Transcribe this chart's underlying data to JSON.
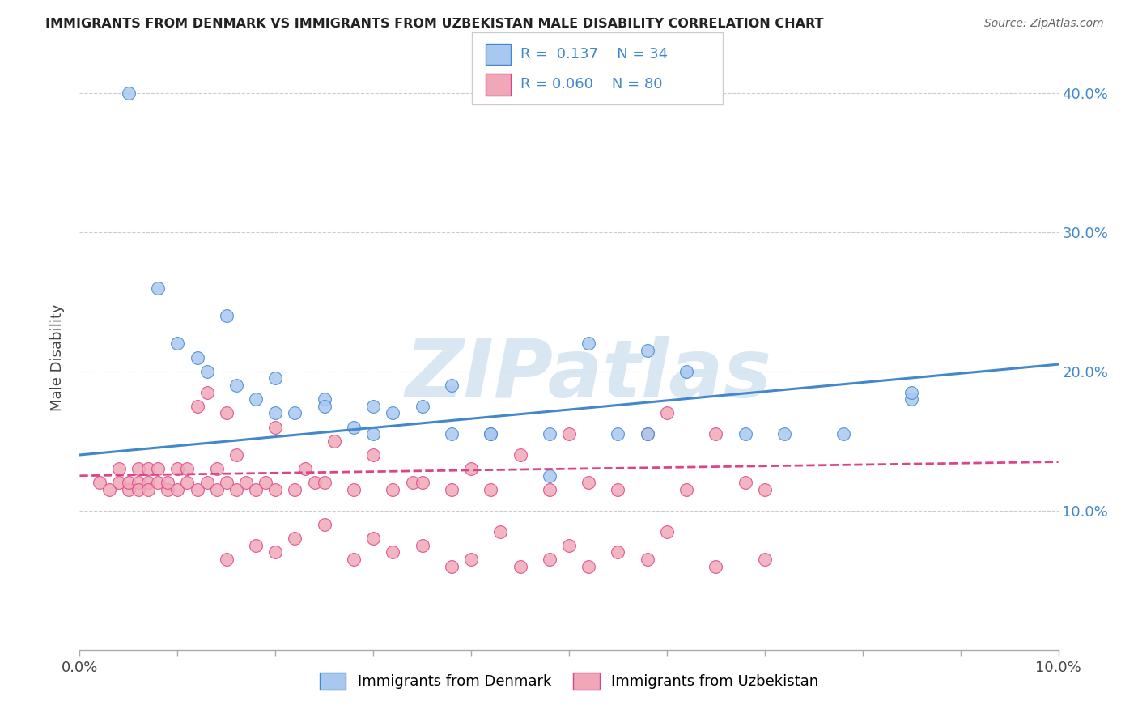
{
  "title": "IMMIGRANTS FROM DENMARK VS IMMIGRANTS FROM UZBEKISTAN MALE DISABILITY CORRELATION CHART",
  "source": "Source: ZipAtlas.com",
  "ylabel": "Male Disability",
  "legend_label_1": "Immigrants from Denmark",
  "legend_label_2": "Immigrants from Uzbekistan",
  "R1": 0.137,
  "N1": 34,
  "R2": 0.06,
  "N2": 80,
  "color_denmark": "#a8c8f0",
  "color_uzbekistan": "#f0a8b8",
  "line_color_denmark": "#4488cc",
  "line_color_uzbekistan": "#dd4488",
  "xlim": [
    0.0,
    0.1
  ],
  "ylim": [
    0.0,
    0.42
  ],
  "xticks": [
    0.0,
    0.01,
    0.02,
    0.03,
    0.04,
    0.05,
    0.06,
    0.07,
    0.08,
    0.09,
    0.1
  ],
  "xtick_labels": [
    "0.0%",
    "",
    "",
    "",
    "",
    "",
    "",
    "",
    "",
    "",
    "10.0%"
  ],
  "yticks": [
    0.1,
    0.2,
    0.3,
    0.4
  ],
  "ytick_labels_right": [
    "10.0%",
    "20.0%",
    "30.0%",
    "40.0%"
  ],
  "watermark": "ZIPatlas",
  "denmark_points_x": [
    0.005,
    0.008,
    0.01,
    0.012,
    0.013,
    0.015,
    0.016,
    0.018,
    0.02,
    0.022,
    0.025,
    0.028,
    0.03,
    0.032,
    0.038,
    0.042,
    0.048,
    0.052,
    0.058,
    0.062,
    0.068,
    0.072,
    0.078,
    0.085,
    0.02,
    0.025,
    0.03,
    0.035,
    0.038,
    0.042,
    0.048,
    0.055,
    0.058,
    0.085
  ],
  "denmark_points_y": [
    0.4,
    0.26,
    0.22,
    0.21,
    0.2,
    0.24,
    0.19,
    0.18,
    0.17,
    0.17,
    0.18,
    0.16,
    0.175,
    0.17,
    0.19,
    0.155,
    0.155,
    0.22,
    0.215,
    0.2,
    0.155,
    0.155,
    0.155,
    0.18,
    0.195,
    0.175,
    0.155,
    0.175,
    0.155,
    0.155,
    0.125,
    0.155,
    0.155,
    0.185
  ],
  "uzbekistan_points_x": [
    0.002,
    0.003,
    0.004,
    0.004,
    0.005,
    0.005,
    0.006,
    0.006,
    0.006,
    0.007,
    0.007,
    0.007,
    0.008,
    0.008,
    0.009,
    0.009,
    0.01,
    0.01,
    0.011,
    0.011,
    0.012,
    0.012,
    0.013,
    0.013,
    0.014,
    0.014,
    0.015,
    0.015,
    0.016,
    0.016,
    0.017,
    0.018,
    0.019,
    0.02,
    0.02,
    0.022,
    0.023,
    0.024,
    0.025,
    0.026,
    0.028,
    0.03,
    0.032,
    0.034,
    0.035,
    0.038,
    0.04,
    0.042,
    0.045,
    0.048,
    0.05,
    0.052,
    0.055,
    0.058,
    0.06,
    0.062,
    0.065,
    0.068,
    0.07,
    0.015,
    0.018,
    0.02,
    0.022,
    0.025,
    0.028,
    0.03,
    0.032,
    0.035,
    0.038,
    0.04,
    0.043,
    0.045,
    0.048,
    0.05,
    0.052,
    0.055,
    0.058,
    0.06,
    0.065,
    0.07
  ],
  "uzbekistan_points_y": [
    0.12,
    0.115,
    0.12,
    0.13,
    0.115,
    0.12,
    0.12,
    0.13,
    0.115,
    0.12,
    0.13,
    0.115,
    0.12,
    0.13,
    0.115,
    0.12,
    0.13,
    0.115,
    0.12,
    0.13,
    0.115,
    0.175,
    0.12,
    0.185,
    0.115,
    0.13,
    0.12,
    0.17,
    0.115,
    0.14,
    0.12,
    0.115,
    0.12,
    0.115,
    0.16,
    0.115,
    0.13,
    0.12,
    0.12,
    0.15,
    0.115,
    0.14,
    0.115,
    0.12,
    0.12,
    0.115,
    0.13,
    0.115,
    0.14,
    0.115,
    0.155,
    0.12,
    0.115,
    0.155,
    0.17,
    0.115,
    0.155,
    0.12,
    0.115,
    0.065,
    0.075,
    0.07,
    0.08,
    0.09,
    0.065,
    0.08,
    0.07,
    0.075,
    0.06,
    0.065,
    0.085,
    0.06,
    0.065,
    0.075,
    0.06,
    0.07,
    0.065,
    0.085,
    0.06,
    0.065
  ]
}
